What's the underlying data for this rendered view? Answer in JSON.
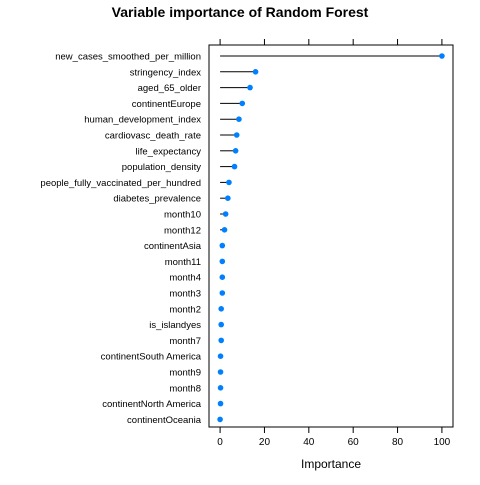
{
  "chart_data": {
    "type": "dotplot",
    "title": "Variable importance of Random Forest",
    "xlabel": "Importance",
    "ylabel": "",
    "xlim": [
      -5,
      105
    ],
    "xticks": [
      0,
      20,
      40,
      60,
      80,
      100
    ],
    "grid": false,
    "point_color": "#0080FF",
    "line_color": "#000000",
    "categories": [
      "new_cases_smoothed_per_million",
      "stringency_index",
      "aged_65_older",
      "continentEurope",
      "human_development_index",
      "cardiovasc_death_rate",
      "life_expectancy",
      "population_density",
      "people_fully_vaccinated_per_hundred",
      "diabetes_prevalence",
      "month10",
      "month12",
      "continentAsia",
      "month11",
      "month4",
      "month3",
      "month2",
      "is_islandyes",
      "month7",
      "continentSouth America",
      "month9",
      "month8",
      "continentNorth America",
      "continentOceania"
    ],
    "values": [
      100,
      16,
      13.5,
      10,
      8.5,
      7.5,
      7,
      6.5,
      4,
      3.5,
      2.5,
      2,
      1,
      1,
      1,
      1,
      0.5,
      0.5,
      0.5,
      0.2,
      0.2,
      0.2,
      0.2,
      0
    ]
  }
}
